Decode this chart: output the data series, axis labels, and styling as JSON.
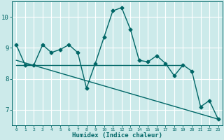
{
  "title": "",
  "xlabel": "Humidex (Indice chaleur)",
  "ylabel": "",
  "bg_color": "#cceaea",
  "grid_color": "#ffffff",
  "line_color": "#006666",
  "x_ticks": [
    0,
    1,
    2,
    3,
    4,
    5,
    6,
    7,
    8,
    9,
    10,
    11,
    12,
    13,
    14,
    15,
    16,
    17,
    18,
    19,
    20,
    21,
    22,
    23
  ],
  "y_ticks": [
    7,
    8,
    9,
    10
  ],
  "ylim": [
    6.5,
    10.5
  ],
  "xlim": [
    -0.5,
    23.5
  ],
  "series1": [
    9.1,
    8.45,
    8.45,
    9.1,
    8.85,
    8.95,
    9.1,
    8.85,
    7.7,
    8.5,
    9.35,
    10.2,
    10.3,
    9.6,
    8.6,
    8.55,
    8.75,
    8.5,
    8.1,
    8.45,
    8.25,
    7.1,
    7.3,
    6.7
  ],
  "series2_x": [
    0,
    19
  ],
  "series2_y": [
    8.45,
    8.45
  ],
  "series3_x": [
    0,
    23
  ],
  "series3_y": [
    8.6,
    6.7
  ],
  "marker": "D",
  "markersize": 2.5,
  "linewidth": 1.0
}
